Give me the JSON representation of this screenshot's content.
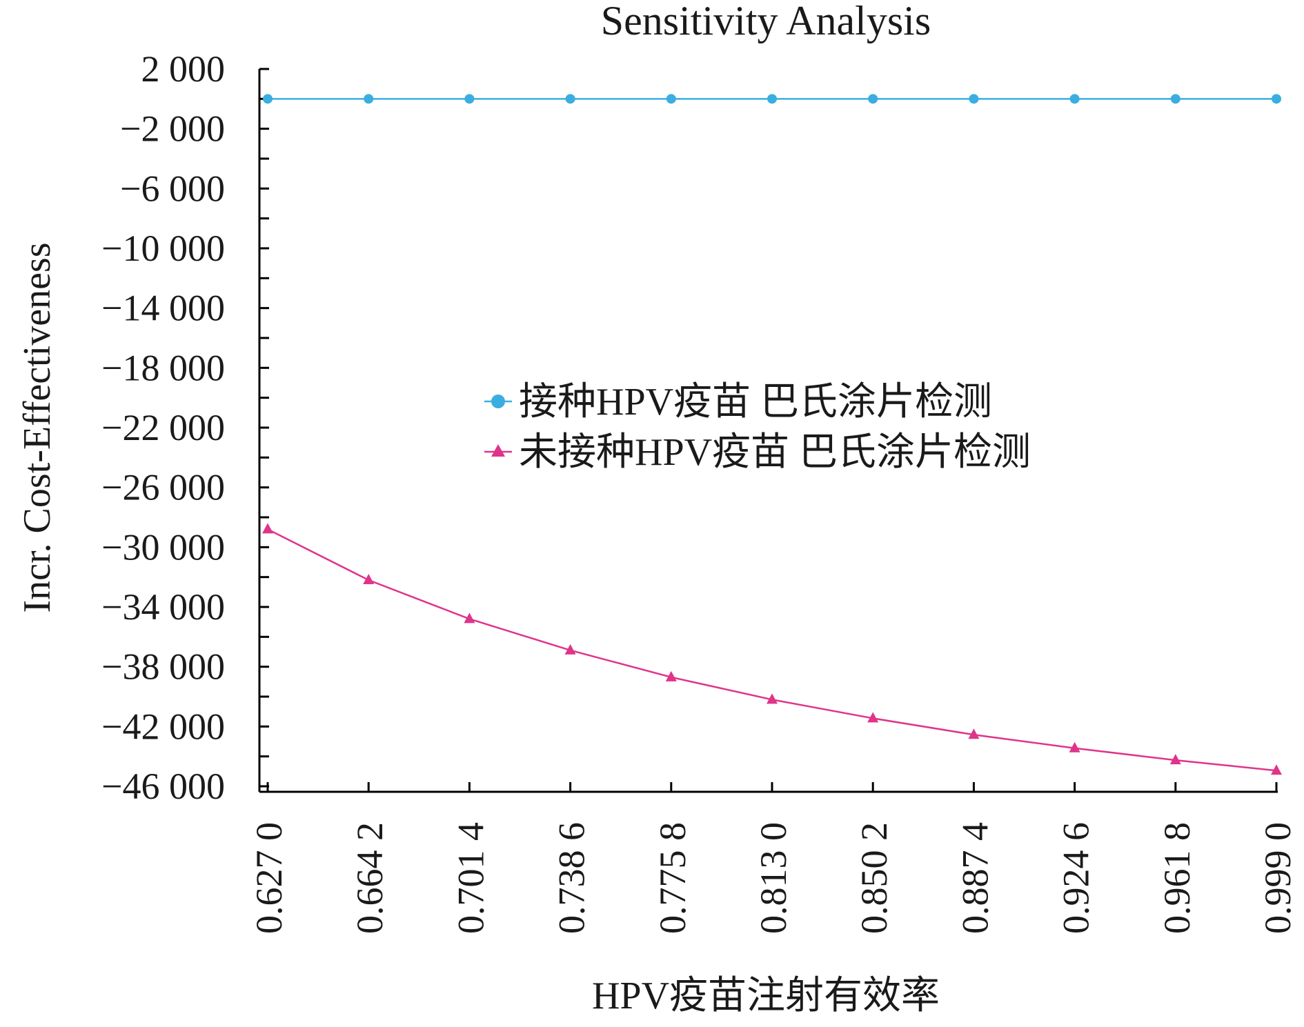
{
  "chart_data": {
    "type": "line",
    "title": "Sensitivity Analysis",
    "xlabel": "HPV疫苗注射有效率",
    "ylabel": "Incr. Cost-Effectiveness",
    "x": [
      "0.627 0",
      "0.664 2",
      "0.701 4",
      "0.738 6",
      "0.775 8",
      "0.813 0",
      "0.850 2",
      "0.887 4",
      "0.924 6",
      "0.961 8",
      "0.999 0"
    ],
    "ylim": [
      -46000,
      2000
    ],
    "yticks": [
      2000,
      -2000,
      -6000,
      -10000,
      -14000,
      -18000,
      -22000,
      -26000,
      -30000,
      -34000,
      -38000,
      -42000,
      -46000
    ],
    "ytick_labels": [
      "2 000",
      "−2 000",
      "−6 000",
      "−10 000",
      "−14 000",
      "−18 000",
      "−22 000",
      "−26 000",
      "−30 000",
      "−34 000",
      "−38 000",
      "−42 000",
      "−46 000"
    ],
    "grid": false,
    "legend_position": "center",
    "series": [
      {
        "name": "接种HPV疫苗 巴氏涂片检测",
        "color": "#3aaee0",
        "marker": "circle",
        "values": [
          0,
          0,
          0,
          0,
          0,
          0,
          0,
          0,
          0,
          0,
          0
        ]
      },
      {
        "name": "未接种HPV疫苗 巴氏涂片检测",
        "color": "#e0348a",
        "marker": "triangle",
        "values": [
          -28800,
          -32200,
          -34800,
          -36900,
          -38700,
          -40200,
          -41450,
          -42550,
          -43450,
          -44250,
          -44950
        ]
      }
    ]
  }
}
